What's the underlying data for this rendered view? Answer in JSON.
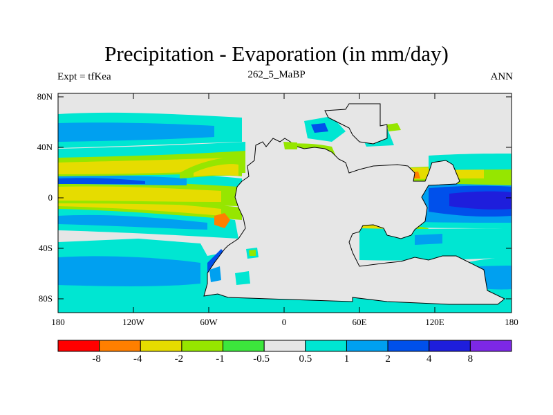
{
  "title": "Precipitation - Evaporation (in mm/day)",
  "subtitle": "262_5_MaBP",
  "left_label": "Expt = tfKea",
  "right_label": "ANN",
  "y_axis": {
    "tick_labels": [
      "80N",
      "40N",
      "0",
      "40S",
      "80S"
    ]
  },
  "x_axis": {
    "tick_labels": [
      "180",
      "120W",
      "60W",
      "0",
      "60E",
      "120E",
      "180"
    ]
  },
  "colorbar": {
    "labels": [
      "-8",
      "-4",
      "-2",
      "-1",
      "-0.5",
      "0.5",
      "1",
      "2",
      "4",
      "8"
    ],
    "colors": [
      "#ff0000",
      "#ff7f00",
      "#e6dc00",
      "#96e600",
      "#3ce63c",
      "#e6e6e6",
      "#00e6d2",
      "#00a0f0",
      "#0050eb",
      "#1e1edc",
      "#7d28e6"
    ]
  },
  "palette": {
    "background_field": "#e6e6e6",
    "coastline": "#000000"
  }
}
